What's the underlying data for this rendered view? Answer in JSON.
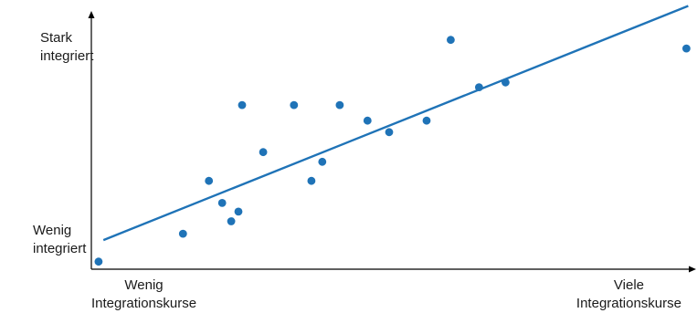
{
  "chart_data": {
    "type": "scatter",
    "title": "",
    "xlabel": "",
    "ylabel": "",
    "xlim": [
      0,
      100
    ],
    "ylim": [
      0,
      100
    ],
    "grid": false,
    "y_tick_labels": {
      "top": [
        "Stark",
        "integriert"
      ],
      "bottom": [
        "Wenig",
        "integriert"
      ]
    },
    "x_tick_labels": {
      "left": [
        "Wenig",
        "Integrationskurse"
      ],
      "right": [
        "Viele",
        "Integrationskurse"
      ]
    },
    "points": [
      {
        "x": 1.2,
        "y": 2.8
      },
      {
        "x": 15.2,
        "y": 13.2
      },
      {
        "x": 19.5,
        "y": 32.8
      },
      {
        "x": 21.7,
        "y": 24.6
      },
      {
        "x": 23.2,
        "y": 17.8
      },
      {
        "x": 24.4,
        "y": 21.4
      },
      {
        "x": 25.0,
        "y": 61.0
      },
      {
        "x": 28.5,
        "y": 43.5
      },
      {
        "x": 33.6,
        "y": 61.0
      },
      {
        "x": 36.5,
        "y": 32.8
      },
      {
        "x": 38.3,
        "y": 39.9
      },
      {
        "x": 41.2,
        "y": 61.0
      },
      {
        "x": 45.8,
        "y": 55.2
      },
      {
        "x": 49.4,
        "y": 50.9
      },
      {
        "x": 55.6,
        "y": 55.2
      },
      {
        "x": 59.6,
        "y": 85.2
      },
      {
        "x": 64.3,
        "y": 67.6
      },
      {
        "x": 68.7,
        "y": 69.4
      },
      {
        "x": 98.7,
        "y": 82.0
      }
    ],
    "trend_line": {
      "x": [
        2,
        99
      ],
      "y": [
        10.8,
        97.8
      ]
    },
    "colors": {
      "points": "#1f73b7",
      "line": "#1f73b7",
      "axes": "#000000"
    }
  }
}
